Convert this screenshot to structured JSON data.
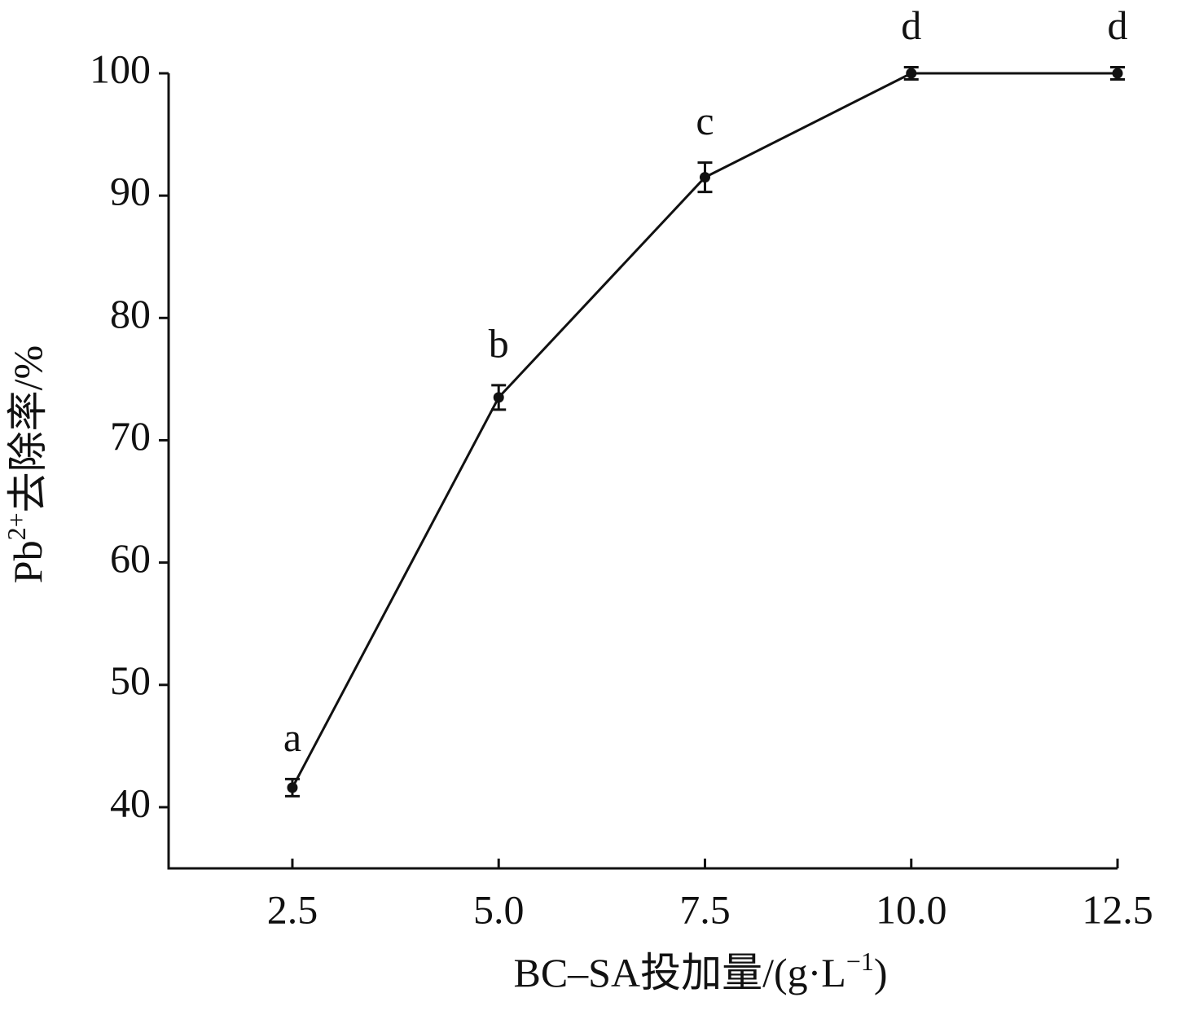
{
  "chart_data": {
    "type": "line",
    "x_label": [
      "BC–SA投加量/(g·L",
      "−1",
      ")"
    ],
    "y_label": [
      "Pb",
      "2+",
      "去除率/%"
    ],
    "x": [
      2.5,
      5.0,
      7.5,
      10.0,
      12.5
    ],
    "series": [
      {
        "color": "#111111",
        "values": [
          41.6,
          73.5,
          91.5,
          100,
          100
        ],
        "errors": [
          0.7,
          1.0,
          1.2,
          0.5,
          0.5
        ],
        "value_labels": [
          "a",
          "b",
          "c",
          "d",
          "d"
        ]
      }
    ],
    "xlim": [
      1.0,
      12.5
    ],
    "xticks": [
      2.5,
      {
        "value": 5,
        "label": "5.0"
      },
      7.5,
      {
        "value": 10,
        "label": "10.0"
      },
      12.5
    ],
    "ylim": [
      35,
      100
    ],
    "yticks": [
      40,
      50,
      60,
      70,
      80,
      90,
      100
    ],
    "grid": false
  }
}
